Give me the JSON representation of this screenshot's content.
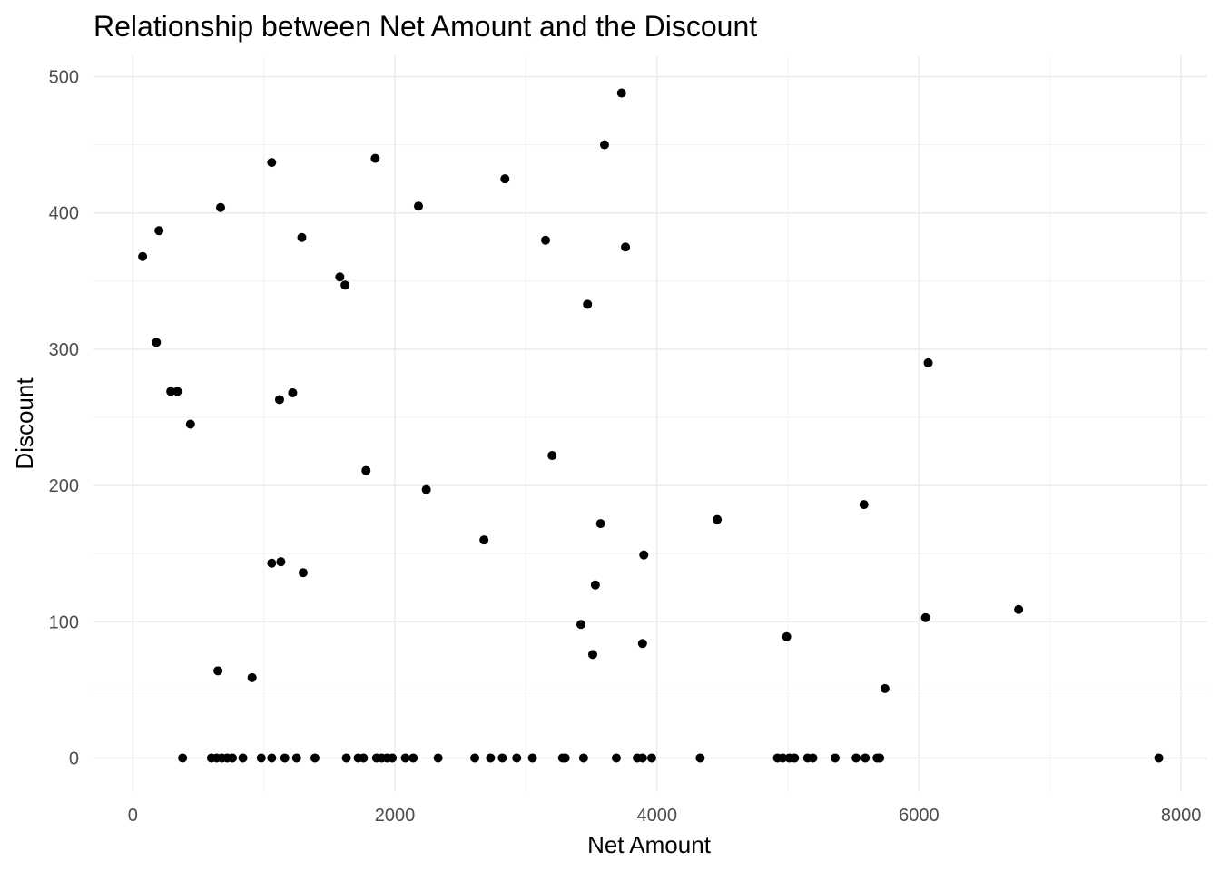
{
  "chart_data": {
    "type": "scatter",
    "title": "Relationship between Net Amount and the Discount",
    "xlabel": "Net Amount",
    "ylabel": "Discount",
    "xlim": [
      -300,
      8200
    ],
    "ylim": [
      -25,
      515
    ],
    "xticks": [
      0,
      2000,
      4000,
      6000,
      8000
    ],
    "yticks": [
      0,
      100,
      200,
      300,
      400,
      500
    ],
    "grid": true,
    "legend": "none",
    "point_color": "#000000",
    "points": [
      [
        75,
        368
      ],
      [
        180,
        305
      ],
      [
        200,
        387
      ],
      [
        290,
        269
      ],
      [
        340,
        269
      ],
      [
        440,
        245
      ],
      [
        670,
        404
      ],
      [
        650,
        64
      ],
      [
        910,
        59
      ],
      [
        1060,
        437
      ],
      [
        1120,
        263
      ],
      [
        1220,
        268
      ],
      [
        1060,
        143
      ],
      [
        1130,
        144
      ],
      [
        1290,
        382
      ],
      [
        1300,
        136
      ],
      [
        1580,
        353
      ],
      [
        1620,
        347
      ],
      [
        1780,
        211
      ],
      [
        1850,
        440
      ],
      [
        2180,
        405
      ],
      [
        2240,
        197
      ],
      [
        2680,
        160
      ],
      [
        2840,
        425
      ],
      [
        3150,
        380
      ],
      [
        3200,
        222
      ],
      [
        3420,
        98
      ],
      [
        3470,
        333
      ],
      [
        3510,
        76
      ],
      [
        3530,
        127
      ],
      [
        3570,
        172
      ],
      [
        3600,
        450
      ],
      [
        3730,
        488
      ],
      [
        3760,
        375
      ],
      [
        3890,
        84
      ],
      [
        3900,
        149
      ],
      [
        4460,
        175
      ],
      [
        4990,
        89
      ],
      [
        5580,
        186
      ],
      [
        5740,
        51
      ],
      [
        6050,
        103
      ],
      [
        6070,
        290
      ],
      [
        6760,
        109
      ],
      [
        380,
        0
      ],
      [
        600,
        0
      ],
      [
        640,
        0
      ],
      [
        680,
        0
      ],
      [
        720,
        0
      ],
      [
        760,
        0
      ],
      [
        840,
        0
      ],
      [
        980,
        0
      ],
      [
        1060,
        0
      ],
      [
        1160,
        0
      ],
      [
        1250,
        0
      ],
      [
        1390,
        0
      ],
      [
        1630,
        0
      ],
      [
        1720,
        0
      ],
      [
        1760,
        0
      ],
      [
        1860,
        0
      ],
      [
        1900,
        0
      ],
      [
        1940,
        0
      ],
      [
        1980,
        0
      ],
      [
        2080,
        0
      ],
      [
        2140,
        0
      ],
      [
        2330,
        0
      ],
      [
        2610,
        0
      ],
      [
        2730,
        0
      ],
      [
        2820,
        0
      ],
      [
        2930,
        0
      ],
      [
        3050,
        0
      ],
      [
        3280,
        0
      ],
      [
        3300,
        0
      ],
      [
        3440,
        0
      ],
      [
        3690,
        0
      ],
      [
        3850,
        0
      ],
      [
        3890,
        0
      ],
      [
        3960,
        0
      ],
      [
        4330,
        0
      ],
      [
        4920,
        0
      ],
      [
        4960,
        0
      ],
      [
        5010,
        0
      ],
      [
        5050,
        0
      ],
      [
        5150,
        0
      ],
      [
        5190,
        0
      ],
      [
        5360,
        0
      ],
      [
        5520,
        0
      ],
      [
        5590,
        0
      ],
      [
        5680,
        0
      ],
      [
        5700,
        0
      ],
      [
        7830,
        0
      ]
    ]
  }
}
